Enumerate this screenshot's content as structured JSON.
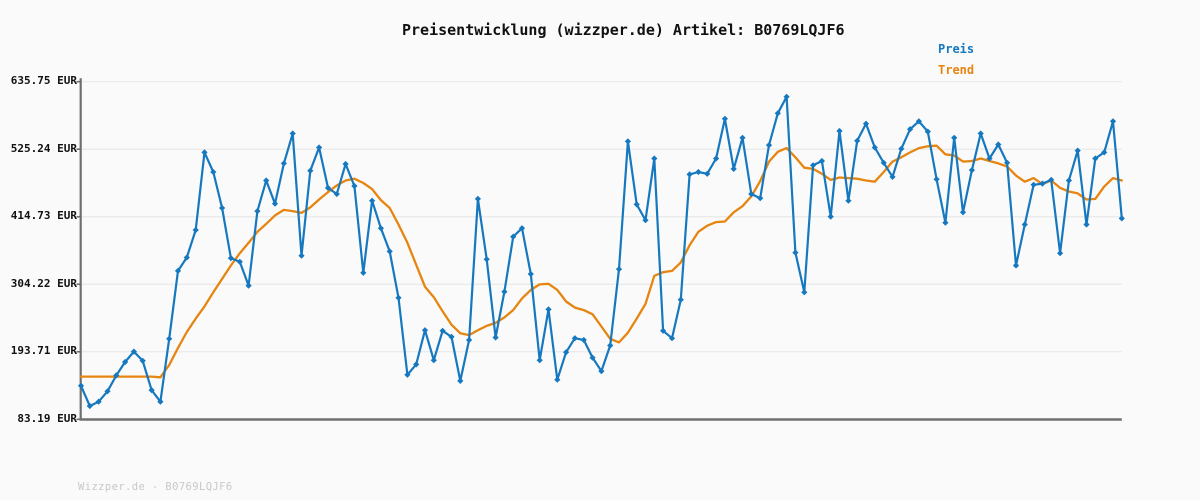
{
  "title": "Preisentwicklung (wizzper.de) Artikel: B0769LQJF6",
  "legend": {
    "preis_label": "Preis",
    "trend_label": "Trend"
  },
  "footer": "Wizzper.de - B0769LQJF6",
  "colors": {
    "preis_line": "#1678bf",
    "trend_line": "#e6850f",
    "grid": "#e9e9e9",
    "axis": "#6f6f6f",
    "background": "#fafafa",
    "title_text": "#111111",
    "footer_text": "#c8c8c8"
  },
  "chart_data": {
    "type": "line",
    "title": "Preisentwicklung (wizzper.de) Artikel: B0769LQJF6",
    "xlabel": "",
    "ylabel": "",
    "currency_unit": "EUR",
    "ylim": [
      83.19,
      635.75
    ],
    "y_ticks": [
      "635.75 EUR",
      "525.24 EUR",
      "414.73 EUR",
      "304.22 EUR",
      "193.71 EUR",
      "83.19 EUR"
    ],
    "y_tick_values": [
      635.75,
      525.24,
      414.73,
      304.22,
      193.71,
      83.19
    ],
    "x_tick_labels": [],
    "grid": "horizontal",
    "legend_position": "top-right",
    "series": [
      {
        "name": "Preis",
        "marker": "diamond",
        "values": [
          138,
          105,
          112,
          129,
          155,
          177,
          194,
          179,
          131,
          112,
          215,
          326,
          348,
          393,
          520,
          488,
          429,
          347,
          341,
          302,
          424,
          474,
          436,
          502,
          551,
          351,
          490,
          528,
          462,
          452,
          501,
          465,
          323,
          441,
          396,
          358,
          282,
          156,
          173,
          229,
          180,
          228,
          218,
          146,
          213,
          444,
          345,
          217,
          292,
          382,
          396,
          321,
          180,
          263,
          148,
          193,
          216,
          213,
          184,
          162,
          204,
          329,
          538,
          435,
          409,
          510,
          228,
          216,
          279,
          484,
          488,
          485,
          510,
          575,
          493,
          544,
          452,
          445,
          532,
          584,
          611,
          356,
          291,
          499,
          506,
          415,
          555,
          441,
          539,
          567,
          528,
          503,
          480,
          526,
          558,
          571,
          554,
          476,
          405,
          544,
          422,
          491,
          551,
          510,
          533,
          503,
          335,
          402,
          467,
          469,
          475,
          355,
          474,
          523,
          402,
          510,
          520,
          571,
          412
        ]
      },
      {
        "name": "Trend",
        "marker": "none",
        "values": [
          153,
          153,
          153,
          153,
          153,
          153,
          153,
          153,
          153,
          152,
          172,
          200,
          226,
          248,
          268,
          291,
          313,
          335,
          355,
          372,
          390,
          403,
          417,
          426,
          424,
          421,
          430,
          443,
          455,
          466,
          474,
          477,
          470,
          460,
          442,
          429,
          402,
          372,
          336,
          300,
          283,
          260,
          238,
          224,
          221,
          229,
          236,
          241,
          250,
          262,
          281,
          295,
          304,
          305,
          295,
          276,
          266,
          262,
          255,
          235,
          215,
          209,
          225,
          248,
          272,
          318,
          324,
          326,
          340,
          368,
          390,
          400,
          406,
          407,
          422,
          432,
          448,
          473,
          505,
          521,
          527,
          512,
          495,
          493,
          485,
          475,
          479,
          478,
          477,
          474,
          472,
          488,
          505,
          512,
          520,
          527,
          530,
          531,
          517,
          515,
          505,
          506,
          510,
          506,
          502,
          497,
          482,
          472,
          478,
          468,
          474,
          462,
          456,
          453,
          443,
          444,
          464,
          478,
          474
        ]
      }
    ]
  }
}
